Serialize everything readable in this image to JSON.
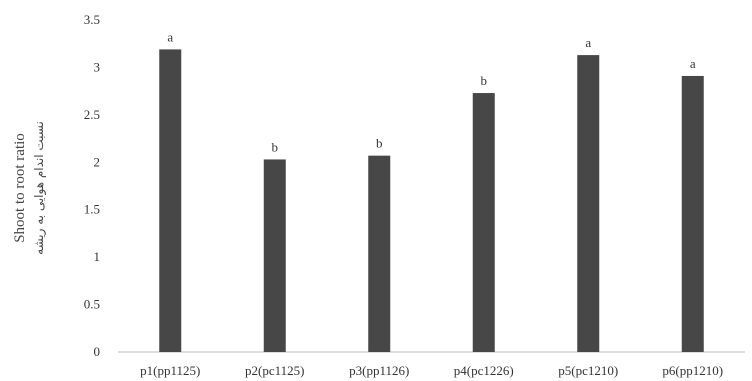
{
  "chart_data": {
    "type": "bar",
    "categories": [
      "p1(pp1125)",
      "p2(pc1125)",
      "p3(pp1126)",
      "p4(pc1226)",
      "p5(pc1210)",
      "p6(pp1210)"
    ],
    "values": [
      3.19,
      2.03,
      2.07,
      2.73,
      3.13,
      2.91
    ],
    "significance_letters": [
      "a",
      "b",
      "b",
      "b",
      "a",
      "a"
    ],
    "ylabel": "Shoot to root ratio",
    "ylabel_secondary": "نسبت اندام هوایی به ریشه",
    "ylim": [
      0,
      3.5
    ],
    "yticks": [
      "0",
      "0.5",
      "1",
      "1.5",
      "2",
      "2.5",
      "3",
      "3.5"
    ],
    "grid": false,
    "colors": {
      "bar": "#474747",
      "axis": "#bfbfbf"
    }
  }
}
